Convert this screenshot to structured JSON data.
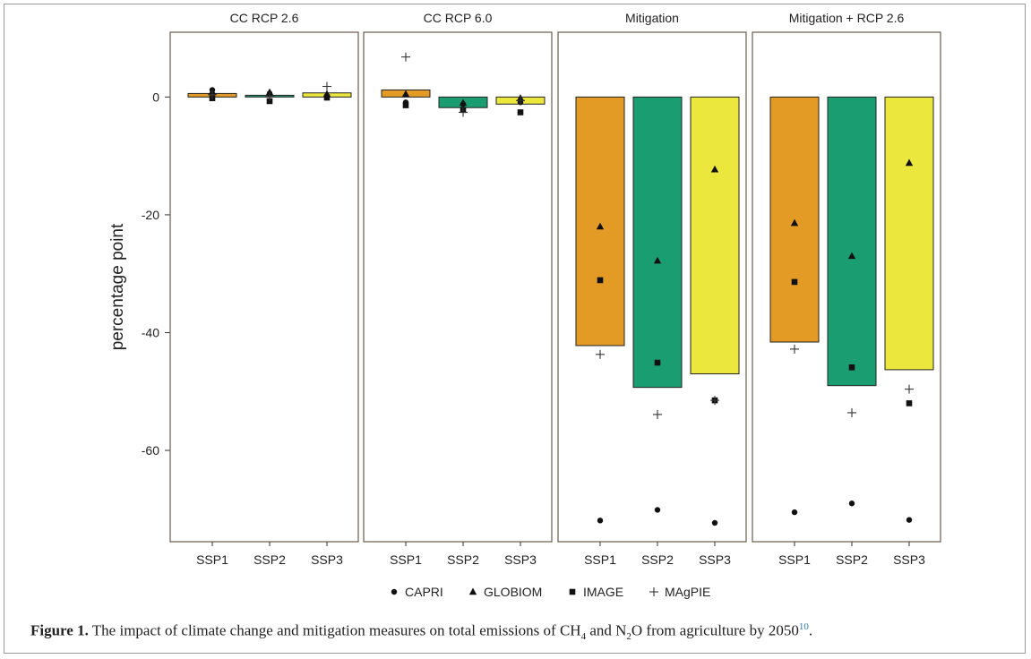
{
  "chart_data": {
    "type": "bar",
    "ylabel": "percentage point",
    "ylim": [
      -75.5,
      11
    ],
    "yticks": [
      0,
      -20,
      -40,
      -60
    ],
    "categories": [
      "SSP1",
      "SSP2",
      "SSP3"
    ],
    "category_colors": [
      "#e39b26",
      "#1a9e71",
      "#ece73d"
    ],
    "panels": [
      {
        "title": "CC RCP 2.6",
        "bars": [
          0.6,
          0.3,
          0.7
        ],
        "points": {
          "CAPRI": [
            1.2,
            0.6,
            0.2
          ],
          "GLOBIOM": [
            0.9,
            0.8,
            0.5
          ],
          "IMAGE": [
            -0.2,
            -0.7,
            -0.1
          ],
          "MAgPIE": [
            0.4,
            0.1,
            1.8
          ]
        }
      },
      {
        "title": "CC RCP 6.0",
        "bars": [
          1.2,
          -1.8,
          -1.2
        ],
        "points": {
          "CAPRI": [
            -0.9,
            -1.2,
            -0.9
          ],
          "GLOBIOM": [
            0.5,
            -1.0,
            -0.2
          ],
          "IMAGE": [
            -1.4,
            -2.2,
            -2.6
          ],
          "MAgPIE": [
            6.8,
            -2.6,
            -0.6
          ]
        }
      },
      {
        "title": "Mitigation",
        "bars": [
          -42.2,
          -49.3,
          -47.0
        ],
        "points": {
          "CAPRI": [
            -71.9,
            -70.1,
            -72.3
          ],
          "GLOBIOM": [
            -22.0,
            -27.8,
            -12.3
          ],
          "IMAGE": [
            -31.1,
            -45.1,
            -51.5
          ],
          "MAgPIE": [
            -43.7,
            -53.9,
            -51.5
          ]
        }
      },
      {
        "title": "Mitigation + RCP 2.6",
        "bars": [
          -41.6,
          -49.0,
          -46.3
        ],
        "points": {
          "CAPRI": [
            -70.5,
            -69.0,
            -71.8
          ],
          "GLOBIOM": [
            -21.4,
            -27.0,
            -11.2
          ],
          "IMAGE": [
            -31.4,
            -45.9,
            -52.0
          ],
          "MAgPIE": [
            -42.8,
            -53.6,
            -49.6
          ]
        }
      }
    ],
    "legend": {
      "placement": "bottom",
      "entries": [
        {
          "name": "CAPRI",
          "marker": "circle"
        },
        {
          "name": "GLOBIOM",
          "marker": "triangle"
        },
        {
          "name": "IMAGE",
          "marker": "square"
        },
        {
          "name": "MAgPIE",
          "marker": "plus"
        }
      ]
    },
    "grid": false
  },
  "caption": {
    "label": "Figure 1.",
    "text_part1": " The impact of climate change and mitigation measures on total emissions of CH",
    "sub1": "4",
    "text_part2": " and N",
    "sub2": "2",
    "text_part3": "O from agriculture by 2050",
    "cite": "10",
    "end": "."
  }
}
